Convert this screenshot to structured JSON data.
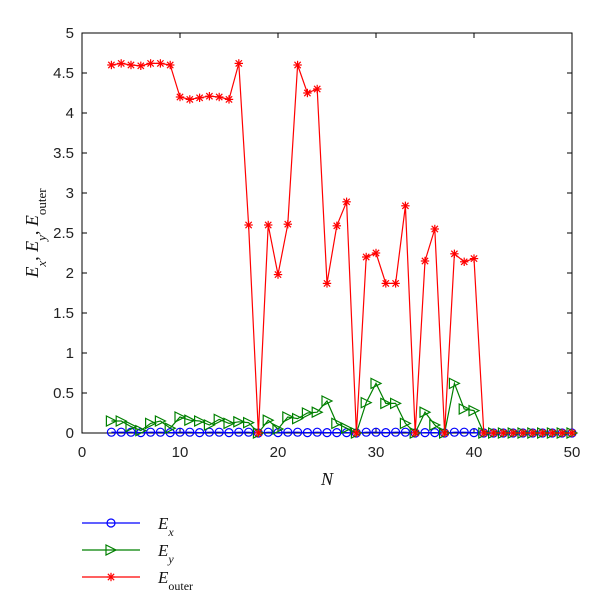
{
  "chart_data": {
    "type": "line",
    "title": "",
    "xlabel": "N",
    "ylabel": {
      "parts": [
        {
          "t": "E",
          "i": true
        },
        {
          "t": "x",
          "i": true,
          "sub": true
        },
        {
          "t": ", "
        },
        {
          "t": "E",
          "i": true
        },
        {
          "t": "y",
          "i": true,
          "sub": true
        },
        {
          "t": ", "
        },
        {
          "t": "E",
          "i": true
        },
        {
          "t": "outer",
          "sub": true
        }
      ]
    },
    "xlim": [
      0,
      50
    ],
    "ylim": [
      0,
      5
    ],
    "xticks": [
      "0",
      "10",
      "20",
      "30",
      "40",
      "50"
    ],
    "yticks": [
      "0",
      "0.5",
      "1",
      "1.5",
      "2",
      "2.5",
      "3",
      "3.5",
      "4",
      "4.5",
      "5"
    ],
    "grid": false,
    "legend_position": "bottom-left-outside",
    "series": [
      {
        "name": {
          "base": "E",
          "sub": "x",
          "sub_italic": true
        },
        "color": "#0000ff",
        "marker": "circle",
        "x": [
          3,
          4,
          5,
          6,
          7,
          8,
          9,
          10,
          11,
          12,
          13,
          14,
          15,
          16,
          17,
          18,
          19,
          20,
          21,
          22,
          23,
          24,
          25,
          26,
          27,
          28,
          29,
          30,
          31,
          32,
          33,
          34,
          35,
          36,
          37,
          38,
          39,
          40,
          41,
          42,
          43,
          44,
          45,
          46,
          47,
          48,
          49,
          50
        ],
        "y": [
          0.01,
          0.01,
          0.01,
          0.005,
          0.01,
          0.01,
          0.005,
          0.01,
          0.01,
          0.005,
          0.01,
          0.01,
          0.005,
          0.01,
          0.01,
          0,
          0.01,
          0.005,
          0.01,
          0.01,
          0.005,
          0.01,
          0.005,
          0.005,
          0.005,
          0,
          0.01,
          0.01,
          0.005,
          0.01,
          0.01,
          0,
          0.005,
          0.005,
          0,
          0.01,
          0.01,
          0.005,
          0,
          0,
          0,
          0,
          0,
          0,
          0,
          0,
          0,
          0
        ]
      },
      {
        "name": {
          "base": "E",
          "sub": "y",
          "sub_italic": true
        },
        "color": "#008000",
        "marker": "triangle-right",
        "x": [
          3,
          4,
          5,
          6,
          7,
          8,
          9,
          10,
          11,
          12,
          13,
          14,
          15,
          16,
          17,
          18,
          19,
          20,
          21,
          22,
          23,
          24,
          25,
          26,
          27,
          28,
          29,
          30,
          31,
          32,
          33,
          34,
          35,
          36,
          37,
          38,
          39,
          40,
          41,
          42,
          43,
          44,
          45,
          46,
          47,
          48,
          49,
          50
        ],
        "y": [
          0.15,
          0.15,
          0.08,
          0.03,
          0.12,
          0.15,
          0.06,
          0.2,
          0.16,
          0.15,
          0.1,
          0.17,
          0.12,
          0.14,
          0.13,
          0,
          0.16,
          0.05,
          0.2,
          0.18,
          0.25,
          0.26,
          0.4,
          0.12,
          0.06,
          0,
          0.38,
          0.62,
          0.37,
          0.37,
          0.12,
          0,
          0.26,
          0.1,
          0,
          0.62,
          0.3,
          0.28,
          0,
          0,
          0,
          0,
          0,
          0,
          0,
          0,
          0,
          0
        ]
      },
      {
        "name": {
          "base": "E",
          "sub": "outer",
          "sub_italic": false
        },
        "color": "#ff0000",
        "marker": "asterisk",
        "x": [
          3,
          4,
          5,
          6,
          7,
          8,
          9,
          10,
          11,
          12,
          13,
          14,
          15,
          16,
          17,
          18,
          19,
          20,
          21,
          22,
          23,
          24,
          25,
          26,
          27,
          28,
          29,
          30,
          31,
          32,
          33,
          34,
          35,
          36,
          37,
          38,
          39,
          40,
          41,
          42,
          43,
          44,
          45,
          46,
          47,
          48,
          49,
          50
        ],
        "y": [
          4.6,
          4.62,
          4.6,
          4.59,
          4.62,
          4.62,
          4.6,
          4.2,
          4.17,
          4.19,
          4.21,
          4.2,
          4.17,
          4.62,
          2.6,
          0,
          2.6,
          1.98,
          2.61,
          4.6,
          4.25,
          4.3,
          1.87,
          2.59,
          2.89,
          0,
          2.2,
          2.25,
          1.87,
          1.87,
          2.84,
          0,
          2.15,
          2.55,
          0,
          2.24,
          2.14,
          2.18,
          0,
          0,
          0,
          0,
          0,
          0,
          0,
          0,
          0,
          0
        ]
      }
    ]
  }
}
